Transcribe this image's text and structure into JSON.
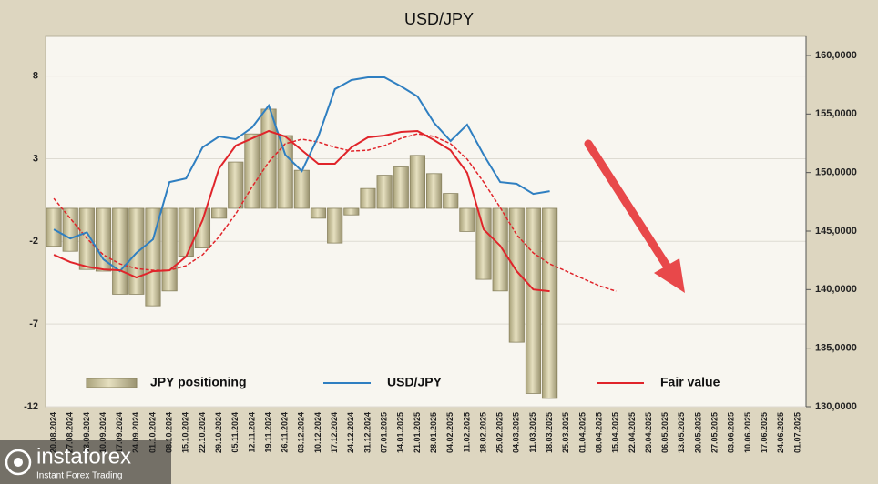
{
  "chart_data": {
    "type": "bar",
    "title": "USD/JPY",
    "categories": [
      "20.08.2024",
      "27.08.2024",
      "03.09.2024",
      "10.09.2024",
      "17.09.2024",
      "24.09.2024",
      "01.10.2024",
      "08.10.2024",
      "15.10.2024",
      "22.10.2024",
      "29.10.2024",
      "05.11.2024",
      "12.11.2024",
      "19.11.2024",
      "26.11.2024",
      "03.12.2024",
      "10.12.2024",
      "17.12.2024",
      "24.12.2024",
      "31.12.2024",
      "07.01.2025",
      "14.01.2025",
      "21.01.2025",
      "28.01.2025",
      "04.02.2025",
      "11.02.2025",
      "18.02.2025",
      "25.02.2025",
      "04.03.2025",
      "11.03.2025",
      "18.03.2025",
      "25.03.2025",
      "01.04.2025",
      "08.04.2025",
      "15.04.2025",
      "22.04.2025",
      "29.04.2025",
      "06.05.2025",
      "13.05.2025",
      "20.05.2025",
      "27.05.2025",
      "03.06.2025",
      "10.06.2025",
      "17.06.2025",
      "24.06.2025",
      "01.07.2025"
    ],
    "series": [
      {
        "name": "JPY positioning",
        "type": "bar",
        "color": "#c8c098",
        "values": [
          -2.3,
          -2.6,
          -3.7,
          -3.8,
          -5.2,
          -5.2,
          -5.9,
          -5.0,
          -2.9,
          -2.4,
          -0.6,
          2.8,
          4.5,
          6.0,
          4.4,
          2.3,
          -0.6,
          -2.1,
          -0.4,
          1.2,
          2.0,
          2.5,
          3.2,
          2.1,
          0.9,
          -1.4,
          -4.3,
          -5.0,
          -8.1,
          -11.2,
          -11.5,
          null,
          null,
          null,
          null,
          null,
          null,
          null,
          null,
          null,
          null,
          null,
          null,
          null,
          null,
          null
        ]
      },
      {
        "type": "line",
        "axis": "y2",
        "color": "#e0242a",
        "dash": true,
        "values": [
          147790,
          146080,
          144370,
          142970,
          142190,
          141800,
          141650,
          141650,
          142040,
          142970,
          144520,
          146470,
          148800,
          150900,
          152460,
          152850,
          152610,
          152150,
          151830,
          151910,
          152300,
          152920,
          153310,
          153080,
          152460,
          151140,
          149190,
          147010,
          144680,
          143130,
          142190,
          141570,
          140940,
          140320,
          139860,
          null,
          null,
          null,
          null,
          null,
          null,
          null,
          null,
          null,
          null,
          null
        ]
      },
      {
        "name": "USD/JPY",
        "type": "line",
        "axis": "y2",
        "color": "#2f7fc1",
        "values": [
          145150,
          144370,
          144900,
          142580,
          141570,
          143130,
          144290,
          149190,
          149500,
          152150,
          153080,
          152850,
          153860,
          155720,
          151520,
          150120,
          153080,
          157120,
          157900,
          158130,
          158130,
          157360,
          156500,
          154250,
          152690,
          154090,
          151520,
          149190,
          149040,
          148180,
          148410,
          null,
          null,
          null,
          null,
          null,
          null,
          null,
          null,
          null,
          null,
          null,
          null,
          null,
          null,
          null
        ]
      },
      {
        "name": "Fair value",
        "type": "line",
        "axis": "y2",
        "color": "#e0242a",
        "values": [
          142970,
          142350,
          141960,
          141730,
          141650,
          141030,
          141570,
          141650,
          142820,
          145930,
          150360,
          152300,
          152920,
          153550,
          153080,
          151910,
          150750,
          150750,
          152150,
          153000,
          153160,
          153470,
          153550,
          152770,
          151910,
          149970,
          145150,
          143750,
          141570,
          140010,
          139860,
          null,
          null,
          null,
          null,
          null,
          null,
          null,
          null,
          null,
          null,
          null,
          null,
          null,
          null,
          null
        ]
      }
    ],
    "ylim": [
      -12,
      10.4
    ],
    "yticks": [
      -12,
      -7,
      -2,
      3,
      8
    ],
    "y2lim": [
      130000,
      161630
    ],
    "y2ticks": [
      {
        "value": 130000,
        "label": "130,0000"
      },
      {
        "value": 135000,
        "label": "135,0000"
      },
      {
        "value": 140000,
        "label": "140,0000"
      },
      {
        "value": 145000,
        "label": "145,0000"
      },
      {
        "value": 150000,
        "label": "150,0000"
      },
      {
        "value": 155000,
        "label": "155,0000"
      },
      {
        "value": 160000,
        "label": "160,0000"
      }
    ],
    "grid": true
  },
  "watermark": {
    "brand": "instaforex",
    "tagline": "Instant Forex Trading"
  }
}
